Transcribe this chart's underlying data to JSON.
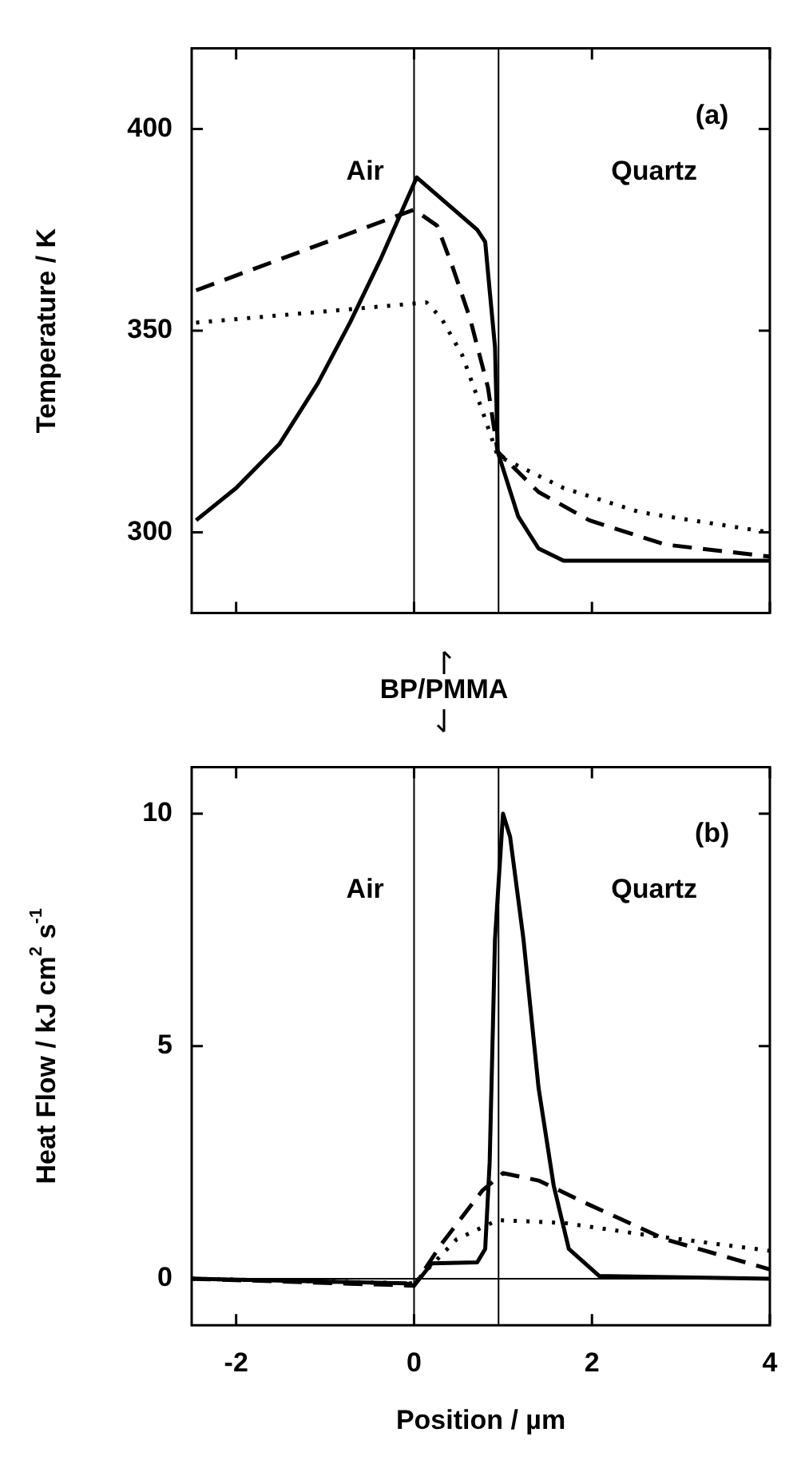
{
  "chart_data": [
    {
      "type": "line",
      "ylabel": "Temperature / K",
      "xlim": [
        -2.5,
        4
      ],
      "xticks": [
        -2,
        0,
        2,
        4
      ],
      "ylim": [
        280,
        420
      ],
      "yticks": [
        300,
        350,
        400
      ],
      "tick_labels": "y",
      "grid": false,
      "legend": false,
      "marker": "none",
      "annotations": [
        "(a)",
        "Air",
        "Quartz",
        "BP/PMMA"
      ],
      "ref_lines": [
        {
          "axis": "x",
          "value": 0,
          "color": "#000000"
        },
        {
          "axis": "x",
          "value": 0.95,
          "color": "#000000"
        }
      ],
      "series": [
        {
          "color": "#000000",
          "line_style": "solid",
          "x": [
            -2.45,
            -2.0,
            -1.51,
            -1.08,
            -0.72,
            -0.37,
            0.03,
            0.71,
            0.8,
            0.85,
            0.91,
            0.94,
            1.17,
            1.4,
            1.68,
            4
          ],
          "values": [
            303,
            311,
            322,
            337,
            352,
            368,
            388,
            375,
            372,
            360,
            346,
            320,
            304,
            296,
            293,
            293
          ]
        },
        {
          "color": "#000000",
          "line_style": "dashed",
          "x": [
            -2.45,
            0,
            0.26,
            0.43,
            0.63,
            0.83,
            0.94,
            1.4,
            1.97,
            2.82,
            4
          ],
          "values": [
            360,
            380,
            376,
            366,
            353,
            336,
            320,
            310,
            303,
            297,
            294
          ]
        },
        {
          "color": "#000000",
          "line_style": "dotted",
          "x": [
            -2.45,
            -0.88,
            0.14,
            0.31,
            0.54,
            0.77,
            0.94,
            1.68,
            2.54,
            4
          ],
          "values": [
            352,
            355,
            357,
            353,
            344,
            330,
            319,
            311,
            305,
            300
          ]
        }
      ]
    },
    {
      "type": "line",
      "xlabel": "Position / µm",
      "ylabel": "Heat Flow / kJ cm$^{2}$ s$^{-1}$",
      "xlim": [
        -2.5,
        4
      ],
      "xticks": [
        -2,
        0,
        2,
        4
      ],
      "ylim": [
        -1,
        11
      ],
      "yticks": [
        0,
        5,
        10
      ],
      "grid": false,
      "legend": false,
      "marker": "none",
      "annotations": [
        "(b)",
        "Air",
        "Quartz"
      ],
      "ref_lines": [
        {
          "axis": "x",
          "value": 0,
          "color": "#000000"
        },
        {
          "axis": "x",
          "value": 0.95,
          "color": "#000000"
        },
        {
          "axis": "y",
          "value": 0,
          "color": "#000000"
        }
      ],
      "series": [
        {
          "color": "#000000",
          "line_style": "solid",
          "x": [
            -2.5,
            -0.09,
            0,
            0.2,
            0.71,
            0.8,
            0.85,
            0.91,
            1.0,
            1.08,
            1.23,
            1.4,
            1.57,
            1.74,
            2.08,
            4
          ],
          "values": [
            0,
            -0.1,
            -0.15,
            0.33,
            0.35,
            0.64,
            2.5,
            7.3,
            10,
            9.5,
            7.3,
            4.1,
            2.0,
            0.64,
            0.06,
            0
          ]
        },
        {
          "color": "#000000",
          "line_style": "dashed",
          "x": [
            -2.5,
            0,
            0.31,
            0.77,
            1.0,
            1.4,
            1.97,
            2.82,
            4
          ],
          "values": [
            0,
            -0.15,
            0.75,
            1.9,
            2.27,
            2.11,
            1.59,
            0.85,
            0.2
          ]
        },
        {
          "color": "#000000",
          "line_style": "dotted",
          "x": [
            -2.5,
            0,
            0.48,
            0.94,
            1.68,
            2.54,
            4
          ],
          "values": [
            0,
            -0.1,
            0.85,
            1.26,
            1.2,
            0.96,
            0.6
          ]
        }
      ]
    }
  ]
}
